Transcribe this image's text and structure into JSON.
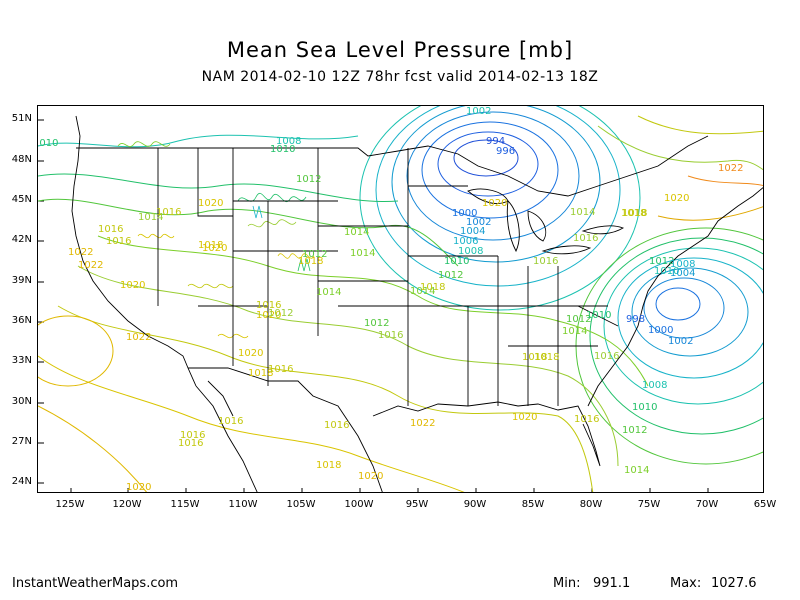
{
  "title": "Mean Sea Level Pressure [mb]",
  "subtitle": "NAM 2014-02-10 12Z 78hr fcst valid 2014-02-13 18Z",
  "lat_labels": [
    "51N",
    "48N",
    "45N",
    "42N",
    "39N",
    "36N",
    "33N",
    "30N",
    "27N",
    "24N"
  ],
  "lon_labels": [
    "125W",
    "120W",
    "115W",
    "110W",
    "105W",
    "100W",
    "95W",
    "90W",
    "85W",
    "80W",
    "75W",
    "70W",
    "65W"
  ],
  "footer": {
    "site": "InstantWeatherMaps.com",
    "min_label": "Min:",
    "min_value": "991.1",
    "max_label": "Max:",
    "max_value": "1027.6"
  },
  "contour_labels": [
    {
      "text": "1002"
    },
    {
      "text": "994"
    },
    {
      "text": "996"
    },
    {
      "text": "1000"
    },
    {
      "text": "1002"
    },
    {
      "text": "1004"
    },
    {
      "text": "1006"
    },
    {
      "text": "1008"
    },
    {
      "text": "1010"
    },
    {
      "text": "1012"
    },
    {
      "text": "1010"
    },
    {
      "text": "1008"
    },
    {
      "text": "1010"
    },
    {
      "text": "1012"
    },
    {
      "text": "1014"
    },
    {
      "text": "1016"
    },
    {
      "text": "1016"
    },
    {
      "text": "1016"
    },
    {
      "text": "1018"
    },
    {
      "text": "1020"
    },
    {
      "text": "1022"
    },
    {
      "text": "1014"
    },
    {
      "text": "1014"
    },
    {
      "text": "1012"
    },
    {
      "text": "1018"
    },
    {
      "text": "1020"
    },
    {
      "text": "1022"
    },
    {
      "text": "1018"
    },
    {
      "text": "1016"
    },
    {
      "text": "1016"
    },
    {
      "text": "1016"
    },
    {
      "text": "1018"
    },
    {
      "text": "1020"
    },
    {
      "text": "1020"
    },
    {
      "text": "1020"
    },
    {
      "text": "1016"
    },
    {
      "text": "1014"
    },
    {
      "text": "1012"
    },
    {
      "text": "1014"
    },
    {
      "text": "1016"
    },
    {
      "text": "1016"
    },
    {
      "text": "1018"
    },
    {
      "text": "1016"
    },
    {
      "text": "1020"
    },
    {
      "text": "1022"
    },
    {
      "text": "1016"
    },
    {
      "text": "1018"
    },
    {
      "text": "1018"
    },
    {
      "text": "1020"
    },
    {
      "text": "1016"
    },
    {
      "text": "1014"
    },
    {
      "text": "1012"
    },
    {
      "text": "1014"
    },
    {
      "text": "1018"
    },
    {
      "text": "1020"
    },
    {
      "text": "1022"
    },
    {
      "text": "1020"
    },
    {
      "text": "1016"
    },
    {
      "text": "1012"
    },
    {
      "text": "1010"
    },
    {
      "text": "1008"
    },
    {
      "text": "1002"
    },
    {
      "text": "1000"
    },
    {
      "text": "998"
    },
    {
      "text": "1004"
    },
    {
      "text": "1008"
    },
    {
      "text": "1010"
    },
    {
      "text": "1012"
    },
    {
      "text": "1014"
    },
    {
      "text": "1016"
    },
    {
      "text": "1018"
    },
    {
      "text": "1020"
    },
    {
      "text": "1022"
    },
    {
      "text": "1010"
    },
    {
      "text": "1012"
    }
  ],
  "colors": {
    "low": "#1e4fd8",
    "mid_low": "#18b3c9",
    "mid": "#22c06a",
    "mid_high": "#9acd32",
    "high": "#d9c400",
    "higher": "#e0a800",
    "highest": "#f08a1a"
  }
}
